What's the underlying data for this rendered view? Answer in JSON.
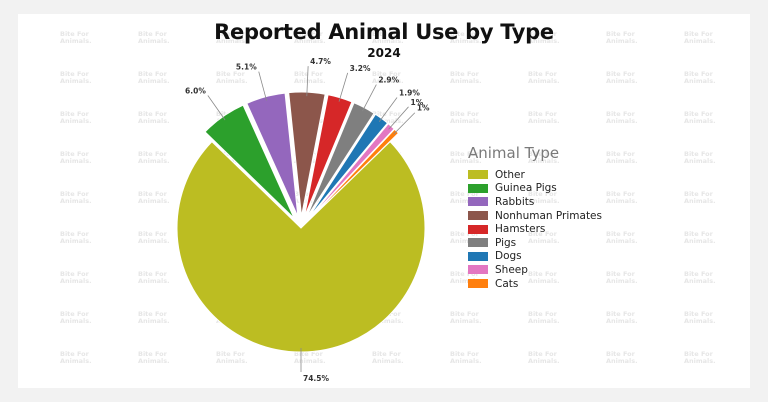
{
  "chart_data": {
    "type": "pie",
    "title": "Reported Animal Use by Type",
    "subtitle": "2024",
    "legend_title": "Animal Type",
    "legend_position": "right",
    "watermark": "Bite For Animals.",
    "slices": [
      {
        "name": "Other",
        "value": 74.5,
        "label": "74.5%",
        "color": "#bcbd22"
      },
      {
        "name": "Guinea Pigs",
        "value": 6.0,
        "label": "6.0%",
        "color": "#2ca02c"
      },
      {
        "name": "Rabbits",
        "value": 5.1,
        "label": "5.1%",
        "color": "#9467bd"
      },
      {
        "name": "Nonhuman Primates",
        "value": 4.7,
        "label": "4.7%",
        "color": "#8c564b"
      },
      {
        "name": "Hamsters",
        "value": 3.2,
        "label": "3.2%",
        "color": "#d62728"
      },
      {
        "name": "Pigs",
        "value": 2.9,
        "label": "2.9%",
        "color": "#7f7f7f"
      },
      {
        "name": "Dogs",
        "value": 1.9,
        "label": "1.9%",
        "color": "#1f77b4"
      },
      {
        "name": "Sheep",
        "value": 1.0,
        "label": "1%",
        "color": "#e377c2"
      },
      {
        "name": "Cats",
        "value": 0.7,
        "label": "1%",
        "color": "#ff7f0e"
      }
    ]
  }
}
